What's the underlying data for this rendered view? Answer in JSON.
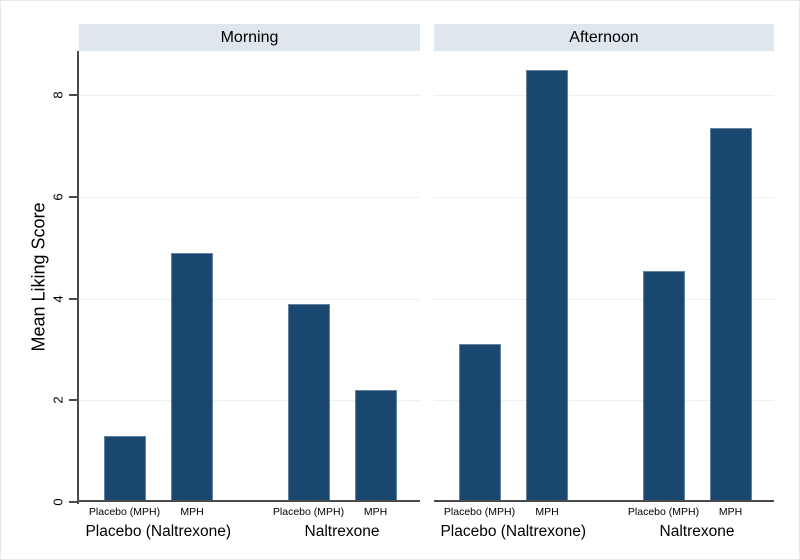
{
  "chart_data": {
    "type": "bar",
    "title": "",
    "ylabel": "Mean Liking Score",
    "xlabel": "",
    "ylim": [
      0,
      8.86
    ],
    "yticks": [
      0,
      2,
      4,
      6,
      8
    ],
    "gridlines_at": [
      2,
      4,
      6,
      8
    ],
    "grid": true,
    "legend": false,
    "layout_hint": "two by-panels side by side, shared y axis on left panel only",
    "panels": [
      {
        "label": "Morning",
        "groups": [
          {
            "label": "Placebo (Naltrexone)",
            "bars": [
              {
                "label": "Placebo (MPH)",
                "value": 1.3
              },
              {
                "label": "MPH",
                "value": 4.9
              }
            ]
          },
          {
            "label": "Naltrexone",
            "bars": [
              {
                "label": "Placebo (MPH)",
                "value": 3.9
              },
              {
                "label": "MPH",
                "value": 2.2
              }
            ]
          }
        ]
      },
      {
        "label": "Afternoon",
        "groups": [
          {
            "label": "Placebo (Naltrexone)",
            "bars": [
              {
                "label": "Placebo (MPH)",
                "value": 3.1
              },
              {
                "label": "MPH",
                "value": 8.5
              }
            ]
          },
          {
            "label": "Naltrexone",
            "bars": [
              {
                "label": "Placebo (MPH)",
                "value": 4.55
              },
              {
                "label": "MPH",
                "value": 7.35
              }
            ]
          }
        ]
      }
    ],
    "colors": {
      "bar_fill": "#1a476f",
      "bar_border": "#64839e",
      "panel_header_bg": "#dde7ed",
      "gridline": "#e8f1f5",
      "axis_line": "#4a4a4a",
      "text": "#000000",
      "background": "#ffffff"
    }
  }
}
